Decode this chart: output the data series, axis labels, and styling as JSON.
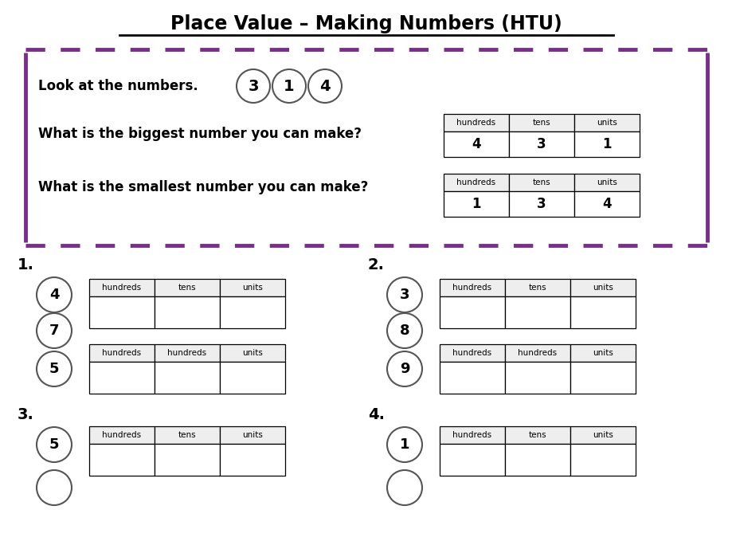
{
  "title": "Place Value – Making Numbers (HTU)",
  "bg_color": "#ffffff",
  "purple": "#7B2D8B",
  "intro_numbers": [
    "3",
    "1",
    "4"
  ],
  "biggest_table": {
    "headers": [
      "hundreds",
      "tens",
      "units"
    ],
    "values": [
      "4",
      "3",
      "1"
    ]
  },
  "smallest_table": {
    "headers": [
      "hundreds",
      "tens",
      "units"
    ],
    "values": [
      "1",
      "3",
      "4"
    ]
  },
  "look_text": "Look at the numbers.",
  "biggest_text": "What is the biggest number you can make?",
  "smallest_text": "What is the smallest number you can make?",
  "problems": [
    {
      "num": "1.",
      "circles": [
        "4",
        "7",
        "5"
      ],
      "tables": [
        {
          "headers": [
            "hundreds",
            "tens",
            "units"
          ],
          "values": [
            "",
            "",
            ""
          ]
        },
        {
          "headers": [
            "hundreds",
            "hundreds",
            "units"
          ],
          "values": [
            "",
            "",
            ""
          ]
        }
      ]
    },
    {
      "num": "2.",
      "circles": [
        "3",
        "8",
        "9"
      ],
      "tables": [
        {
          "headers": [
            "hundreds",
            "tens",
            "units"
          ],
          "values": [
            "",
            "",
            ""
          ]
        },
        {
          "headers": [
            "hundreds",
            "hundreds",
            "units"
          ],
          "values": [
            "",
            "",
            ""
          ]
        }
      ]
    },
    {
      "num": "3.",
      "circles": [
        "5",
        ""
      ],
      "tables": [
        {
          "headers": [
            "hundreds",
            "tens",
            "units"
          ],
          "values": [
            "",
            "",
            ""
          ]
        }
      ]
    },
    {
      "num": "4.",
      "circles": [
        "1",
        ""
      ],
      "tables": [
        {
          "headers": [
            "hundreds",
            "tens",
            "units"
          ],
          "values": [
            "",
            "",
            ""
          ]
        }
      ]
    }
  ]
}
